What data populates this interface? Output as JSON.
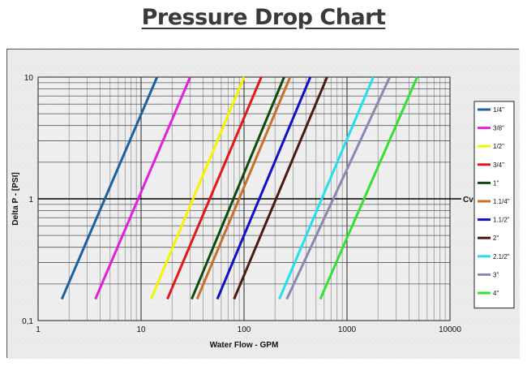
{
  "page": {
    "title": "Pressure Drop Chart"
  },
  "chart_data": {
    "type": "line",
    "title": "Pressure Drop Chart",
    "xlabel": "Water Flow - GPM",
    "ylabel": "Delta P - [PSI]",
    "xscale": "log",
    "yscale": "log",
    "xlim": [
      1,
      10000
    ],
    "ylim": [
      0.1,
      10
    ],
    "x_ticks": [
      "1",
      "10",
      "100",
      "1000",
      "10000"
    ],
    "y_ticks": [
      "0,1",
      "1",
      "10"
    ],
    "grid": true,
    "legend_position": "right",
    "reference_line": {
      "y": 1,
      "label": "Cv"
    },
    "series": [
      {
        "name": "1/4\"",
        "color": "#1f5fa0",
        "points": [
          [
            1.7,
            0.15
          ],
          [
            14.3,
            10
          ]
        ]
      },
      {
        "name": "3/8\"",
        "color": "#e020e0",
        "points": [
          [
            3.6,
            0.15
          ],
          [
            30,
            10
          ]
        ]
      },
      {
        "name": "1/2\"",
        "color": "#f4f400",
        "points": [
          [
            12.5,
            0.15
          ],
          [
            100,
            10
          ]
        ]
      },
      {
        "name": "3/4\"",
        "color": "#e01818",
        "points": [
          [
            18,
            0.15
          ],
          [
            147,
            10
          ]
        ]
      },
      {
        "name": "1\"",
        "color": "#0e4a0e",
        "points": [
          [
            31,
            0.15
          ],
          [
            245,
            10
          ]
        ]
      },
      {
        "name": "1.1/4\"",
        "color": "#c8702a",
        "points": [
          [
            35,
            0.15
          ],
          [
            280,
            10
          ]
        ]
      },
      {
        "name": "1.1/2\"",
        "color": "#1010c8",
        "points": [
          [
            55,
            0.15
          ],
          [
            440,
            10
          ]
        ]
      },
      {
        "name": "2\"",
        "color": "#4a1a10",
        "points": [
          [
            80,
            0.15
          ],
          [
            640,
            10
          ]
        ]
      },
      {
        "name": "2.1/2\"",
        "color": "#22e0ee",
        "points": [
          [
            220,
            0.15
          ],
          [
            1800,
            10
          ]
        ]
      },
      {
        "name": "3\"",
        "color": "#8a88b0",
        "points": [
          [
            260,
            0.15
          ],
          [
            2600,
            10
          ]
        ]
      },
      {
        "name": "4\"",
        "color": "#33e033",
        "points": [
          [
            550,
            0.15
          ],
          [
            4800,
            10
          ]
        ]
      }
    ]
  }
}
